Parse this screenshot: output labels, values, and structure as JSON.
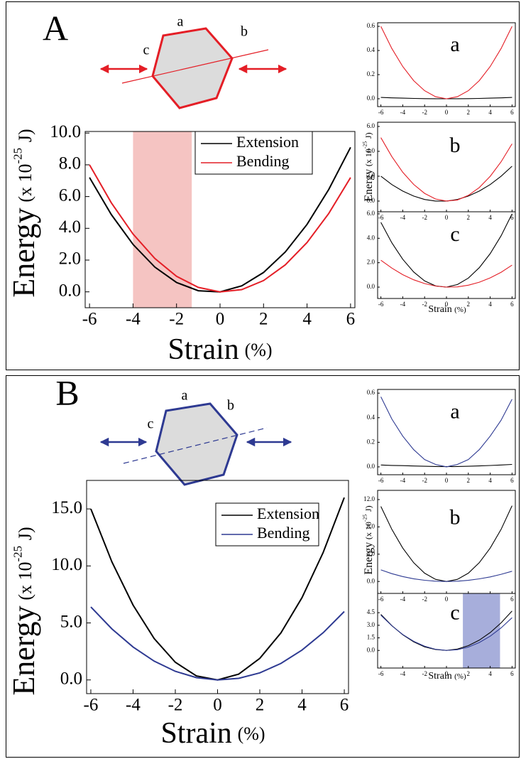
{
  "chart_data": [
    {
      "type": "line",
      "panel_label": "A",
      "diagram_labels": [
        "a",
        "b",
        "c"
      ],
      "xlabel": [
        "Strain",
        "(%)"
      ],
      "ylabel": [
        "Energy",
        "(x 10",
        "-25",
        "J)"
      ],
      "x": [
        -6,
        -5,
        -4,
        -3,
        -2,
        -1,
        0,
        1,
        2,
        3,
        4,
        5,
        6
      ],
      "xlim": [
        -6.2,
        6.2
      ],
      "xticks": [
        -6,
        -4,
        -2,
        0,
        2,
        4,
        6
      ],
      "ylim": [
        -1,
        10.1
      ],
      "yticks": [
        {
          "value": 0,
          "label": "0.0"
        },
        {
          "value": 2,
          "label": "2.0"
        },
        {
          "value": 4,
          "label": "4.0"
        },
        {
          "value": 6,
          "label": "6.0"
        },
        {
          "value": 8,
          "label": "8.0"
        },
        {
          "value": 10,
          "label": "10.0"
        }
      ],
      "highlight": [
        -4,
        -1.3
      ],
      "highlight_color": "#f5c4c2",
      "legend": "upper right",
      "series": [
        {
          "name": "Extension",
          "color": "#000000",
          "values": [
            7.2,
            4.87,
            2.99,
            1.56,
            0.59,
            0.07,
            0,
            0.38,
            1.22,
            2.51,
            4.25,
            6.45,
            9.1
          ]
        },
        {
          "name": "Bending",
          "color": "#e41e26",
          "values": [
            8.0,
            5.61,
            3.64,
            2.1,
            0.98,
            0.28,
            0,
            0.14,
            0.71,
            1.7,
            3.11,
            4.94,
            7.2
          ]
        }
      ]
    },
    {
      "type": "line",
      "title": "a",
      "x": [
        -6,
        -5,
        -4,
        -3,
        -2,
        -1,
        0,
        1,
        2,
        3,
        4,
        5,
        6
      ],
      "xlim": [
        -6.3,
        6.3
      ],
      "xticks": [
        -6,
        -4,
        -2,
        0,
        2,
        4,
        6
      ],
      "ylim": [
        -0.065,
        0.63
      ],
      "yticks": [
        {
          "value": 0,
          "label": "0.0"
        },
        {
          "value": 0.2,
          "label": "0.2"
        },
        {
          "value": 0.4,
          "label": "0.4"
        },
        0.6
      ],
      "series": [
        {
          "color": "#000000",
          "values": [
            0.011,
            0.0075,
            0.0048,
            0.0027,
            0.0012,
            0.0003,
            0,
            0.0003,
            0.0012,
            0.0027,
            0.0048,
            0.0075,
            0.011
          ]
        },
        {
          "color": "#e41e26",
          "values": [
            0.6,
            0.417,
            0.267,
            0.15,
            0.067,
            0.017,
            0,
            0.017,
            0.067,
            0.15,
            0.267,
            0.417,
            0.6
          ]
        }
      ]
    },
    {
      "type": "line",
      "title": "b",
      "ylabel": [
        "Energy",
        "(x 10",
        "-25",
        "J)"
      ],
      "x": [
        -6,
        -5,
        -4,
        -3,
        -2,
        -1,
        0,
        1,
        2,
        3,
        4,
        5,
        6
      ],
      "xlim": [
        -6.3,
        6.3
      ],
      "xticks": [
        -6,
        -4,
        -2,
        0,
        2,
        4,
        6
      ],
      "ylim": [
        -0.86,
        6.34
      ],
      "yticks": [
        {
          "value": 0,
          "label": "0.0"
        },
        {
          "value": 2,
          "label": "2.0"
        },
        {
          "value": 4,
          "label": "4.0"
        },
        {
          "value": 6,
          "label": "6.0"
        }
      ],
      "series": [
        {
          "color": "#000000",
          "values": [
            2.0,
            1.33,
            0.8,
            0.4,
            0.13,
            0,
            0,
            0.13,
            0.4,
            0.8,
            1.33,
            2.0,
            2.8
          ]
        },
        {
          "color": "#e41e26",
          "values": [
            5.1,
            3.58,
            2.32,
            1.34,
            0.62,
            0.17,
            0,
            0.09,
            0.46,
            1.09,
            1.99,
            3.16,
            4.6
          ]
        }
      ]
    },
    {
      "type": "line",
      "title": "c",
      "xlabel": [
        "Strain",
        "(%)"
      ],
      "x": [
        -6,
        -5,
        -4,
        -3,
        -2,
        -1,
        0,
        1,
        2,
        3,
        4,
        5,
        6
      ],
      "xlim": [
        -6.3,
        6.3
      ],
      "xticks": [
        -6,
        -4,
        -2,
        0,
        2,
        4,
        6
      ],
      "ylim": [
        -0.93,
        6.17
      ],
      "yticks": [
        {
          "value": 0,
          "label": "0.0"
        },
        {
          "value": 2,
          "label": "2.0"
        },
        {
          "value": 4,
          "label": "4.0"
        },
        {
          "value": 6,
          "label": "6.0"
        }
      ],
      "series": [
        {
          "color": "#000000",
          "values": [
            5.3,
            3.63,
            2.28,
            1.24,
            0.51,
            0.1,
            0,
            0.21,
            0.74,
            1.59,
            2.74,
            4.21,
            6.0
          ]
        },
        {
          "color": "#e41e26",
          "values": [
            2.2,
            1.56,
            1.02,
            0.6,
            0.29,
            0.09,
            0,
            0.02,
            0.16,
            0.4,
            0.76,
            1.22,
            1.8
          ]
        }
      ]
    },
    {
      "type": "line",
      "panel_label": "B",
      "diagram_labels": [
        "a",
        "b",
        "c"
      ],
      "xlabel": [
        "Strain",
        "(%)"
      ],
      "ylabel": [
        "Energy",
        "(x 10",
        "-25",
        "J)"
      ],
      "x": [
        -6,
        -5,
        -4,
        -3,
        -2,
        -1,
        0,
        1,
        2,
        3,
        4,
        5,
        6
      ],
      "xlim": [
        -6.2,
        6.2
      ],
      "xticks": [
        -6,
        -4,
        -2,
        0,
        2,
        4,
        6
      ],
      "ylim": [
        -1.2,
        17.5
      ],
      "yticks": [
        {
          "value": 0,
          "label": "0.0"
        },
        {
          "value": 5,
          "label": "5.0"
        },
        {
          "value": 10,
          "label": "10.0"
        },
        {
          "value": 15,
          "label": "15.0"
        }
      ],
      "legend": "upper center",
      "series": [
        {
          "name": "Extension",
          "color": "#000000",
          "values": [
            15.0,
            10.35,
            6.56,
            3.63,
            1.55,
            0.35,
            0,
            0.51,
            1.89,
            4.13,
            7.22,
            11.18,
            16.0
          ]
        },
        {
          "name": "Bending",
          "color": "#2e3a92",
          "values": [
            6.4,
            4.47,
            2.89,
            1.65,
            0.76,
            0.2,
            0,
            0.14,
            0.62,
            1.45,
            2.62,
            4.14,
            6.0
          ]
        }
      ]
    },
    {
      "type": "line",
      "title": "a",
      "x": [
        -6,
        -5,
        -4,
        -3,
        -2,
        -1,
        0,
        1,
        2,
        3,
        4,
        5,
        6
      ],
      "xlim": [
        -6.3,
        6.3
      ],
      "xticks": [
        -6,
        -4,
        -2,
        0,
        2,
        4,
        6
      ],
      "ylim": [
        -0.064,
        0.63
      ],
      "yticks": [
        {
          "value": 0,
          "label": "0.0"
        },
        {
          "value": 0.2,
          "label": "0.2"
        },
        {
          "value": 0.4,
          "label": "0.4"
        },
        0.6
      ],
      "series": [
        {
          "color": "#000000",
          "values": [
            0.015,
            0.012,
            0.01,
            0.007,
            0.005,
            0.003,
            0.002,
            0.003,
            0.005,
            0.008,
            0.011,
            0.015,
            0.02
          ]
        },
        {
          "color": "#2e3a92",
          "values": [
            0.57,
            0.39,
            0.25,
            0.14,
            0.06,
            0.02,
            0,
            0.02,
            0.06,
            0.14,
            0.25,
            0.38,
            0.55
          ]
        }
      ]
    },
    {
      "type": "line",
      "title": "b",
      "ylabel": [
        "Energy",
        "(x 10",
        "-25",
        "J)"
      ],
      "x": [
        -6,
        -5,
        -4,
        -3,
        -2,
        -1,
        0,
        1,
        2,
        3,
        4,
        5,
        6
      ],
      "xlim": [
        -6.3,
        6.3
      ],
      "xticks": [
        -6,
        -4,
        -2,
        0,
        2,
        4,
        6
      ],
      "ylim": [
        -1.75,
        13.35
      ],
      "yticks": [
        {
          "value": 0,
          "label": "0.0"
        },
        {
          "value": 4,
          "label": "4.0"
        },
        {
          "value": 8,
          "label": "8.0"
        },
        {
          "value": 12,
          "label": "12.0"
        }
      ],
      "series": [
        {
          "color": "#000000",
          "values": [
            11.0,
            7.64,
            4.89,
            2.75,
            1.22,
            0.31,
            0,
            0.31,
            1.22,
            2.75,
            4.89,
            7.64,
            11.1
          ]
        },
        {
          "color": "#2e3a92",
          "values": [
            1.7,
            1.15,
            0.72,
            0.4,
            0.18,
            0.04,
            0,
            0.04,
            0.17,
            0.38,
            0.67,
            1.05,
            1.5
          ]
        }
      ]
    },
    {
      "type": "line",
      "title": "c",
      "xlabel": [
        "Strain",
        "(%)"
      ],
      "x": [
        -6,
        -5,
        -4,
        -3,
        -2,
        -1,
        0,
        1,
        2,
        3,
        4,
        5,
        6
      ],
      "xlim": [
        -6.3,
        6.3
      ],
      "xticks": [
        -6,
        -4,
        -2,
        0,
        2,
        4,
        6
      ],
      "ylim": [
        -2.1,
        6.8
      ],
      "yticks": [
        {
          "value": 0,
          "label": "0.0"
        },
        1.5,
        {
          "value": 3,
          "label": "3.0"
        },
        4.5
      ],
      "highlight": [
        1.5,
        4.9
      ],
      "highlight_color": "#a7aedb",
      "series": [
        {
          "color": "#000000",
          "values": [
            4.3,
            2.96,
            1.87,
            1.03,
            0.43,
            0.1,
            0,
            0.16,
            0.57,
            1.22,
            2.13,
            3.29,
            4.7
          ]
        },
        {
          "color": "#2e3a92",
          "values": [
            4.2,
            2.94,
            1.9,
            1.09,
            0.5,
            0.14,
            0,
            0.09,
            0.4,
            0.94,
            1.7,
            2.69,
            3.9
          ]
        }
      ]
    }
  ]
}
